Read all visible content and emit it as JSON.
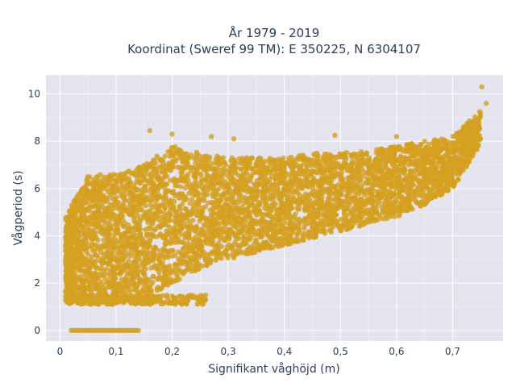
{
  "chart_data": {
    "type": "scatter",
    "title_line1": "År 1979 - 2019",
    "title_line2": "Koordinat (Sweref 99 TM): E 350225, N 6304107",
    "xlabel": "Signifikant våghöjd (m)",
    "ylabel": "Vågperiod (s)",
    "xlim": [
      -0.025,
      0.79
    ],
    "ylim": [
      -0.45,
      10.8
    ],
    "x_ticks": [
      0,
      0.1,
      0.2,
      0.3,
      0.4,
      0.5,
      0.6,
      0.7
    ],
    "x_tick_labels": [
      "0",
      "0,1",
      "0,2",
      "0,3",
      "0,4",
      "0,5",
      "0,6",
      "0,7"
    ],
    "y_ticks": [
      0,
      2,
      4,
      6,
      8,
      10
    ],
    "y_tick_labels": [
      "0",
      "2",
      "4",
      "6",
      "8",
      "10"
    ],
    "grid": true,
    "legend": "none",
    "marker_color": "#D4A020",
    "plot_background": "#E5E5EF",
    "points_summary": {
      "approx_point_count": "tens of thousands (dense cloud)",
      "zero_period_band": {
        "x_min": 0.02,
        "x_max": 0.14,
        "y": 0
      },
      "lower_band": {
        "x_min": 0.01,
        "x_max": 0.26,
        "y_min": 1.1,
        "y_max": 1.5
      },
      "main_cloud_envelope": [
        {
          "x": 0.01,
          "y_min": 1.2,
          "y_max": 4.8
        },
        {
          "x": 0.05,
          "y_min": 1.1,
          "y_max": 6.6
        },
        {
          "x": 0.1,
          "y_min": 1.1,
          "y_max": 6.6
        },
        {
          "x": 0.15,
          "y_min": 1.3,
          "y_max": 7.0
        },
        {
          "x": 0.2,
          "y_min": 2.0,
          "y_max": 7.8
        },
        {
          "x": 0.25,
          "y_min": 2.6,
          "y_max": 7.5
        },
        {
          "x": 0.3,
          "y_min": 3.0,
          "y_max": 7.3
        },
        {
          "x": 0.35,
          "y_min": 3.3,
          "y_max": 7.3
        },
        {
          "x": 0.4,
          "y_min": 3.6,
          "y_max": 7.3
        },
        {
          "x": 0.45,
          "y_min": 3.9,
          "y_max": 7.5
        },
        {
          "x": 0.5,
          "y_min": 4.2,
          "y_max": 7.5
        },
        {
          "x": 0.55,
          "y_min": 4.5,
          "y_max": 7.6
        },
        {
          "x": 0.6,
          "y_min": 4.8,
          "y_max": 7.8
        },
        {
          "x": 0.65,
          "y_min": 5.3,
          "y_max": 8.0
        },
        {
          "x": 0.7,
          "y_min": 6.0,
          "y_max": 8.2
        },
        {
          "x": 0.75,
          "y_min": 7.9,
          "y_max": 9.3
        }
      ],
      "outliers": [
        {
          "x": 0.16,
          "y": 8.45
        },
        {
          "x": 0.2,
          "y": 8.3
        },
        {
          "x": 0.27,
          "y": 8.2
        },
        {
          "x": 0.31,
          "y": 8.1
        },
        {
          "x": 0.49,
          "y": 8.25
        },
        {
          "x": 0.6,
          "y": 8.2
        },
        {
          "x": 0.752,
          "y": 10.3
        },
        {
          "x": 0.76,
          "y": 9.6
        }
      ]
    }
  }
}
